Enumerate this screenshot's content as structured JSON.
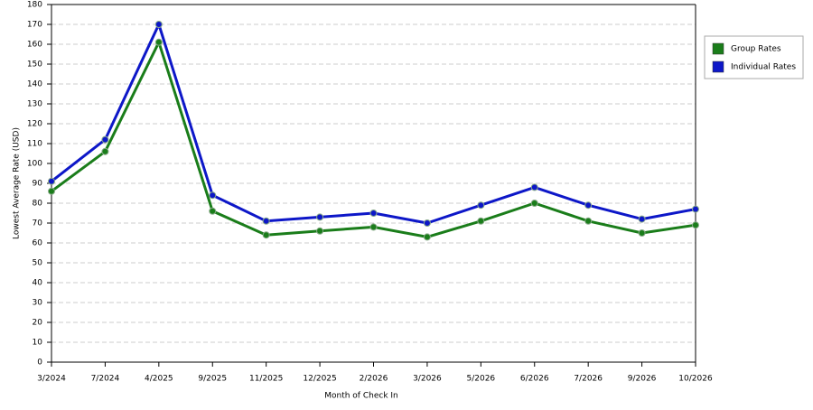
{
  "chart_data": {
    "type": "line",
    "x_label": "Month of Check In",
    "y_label": "Lowest Average Rate (USD)",
    "categories": [
      "3/2024",
      "7/2024",
      "4/2025",
      "9/2025",
      "11/2025",
      "12/2025",
      "2/2026",
      "3/2026",
      "5/2026",
      "6/2026",
      "7/2026",
      "9/2026",
      "10/2026"
    ],
    "series": [
      {
        "name": "Group Rates",
        "color": "#1a7d1a",
        "values": [
          86,
          106,
          161,
          76,
          64,
          66,
          68,
          63,
          71,
          80,
          71,
          65,
          69
        ]
      },
      {
        "name": "Individual Rates",
        "color": "#0d17c8",
        "values": [
          91,
          112,
          170,
          84,
          71,
          73,
          75,
          70,
          79,
          88,
          79,
          72,
          77
        ]
      }
    ],
    "ylim": [
      0,
      180
    ],
    "yticks": [
      0,
      10,
      20,
      30,
      40,
      50,
      60,
      70,
      80,
      90,
      100,
      110,
      120,
      130,
      140,
      150,
      160,
      170,
      180
    ],
    "grid": true,
    "legend": "right"
  }
}
